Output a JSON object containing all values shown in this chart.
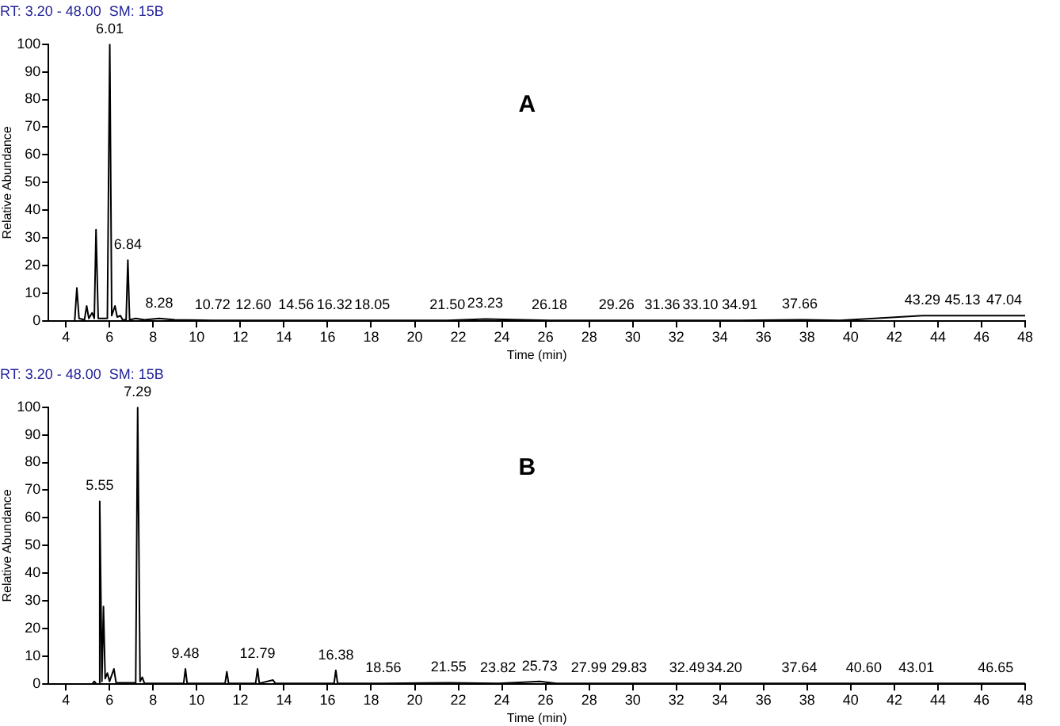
{
  "chart_data": [
    {
      "type": "line",
      "title": "A",
      "subtitle": "RT: 3.20 - 48.00  SM: 15B",
      "xlabel": "Time (min)",
      "ylabel": "Relative Abundance",
      "xlim": [
        3.2,
        48
      ],
      "xticks": [
        4,
        6,
        8,
        10,
        12,
        14,
        16,
        18,
        20,
        22,
        24,
        26,
        28,
        30,
        32,
        34,
        36,
        38,
        40,
        42,
        44,
        46,
        48
      ],
      "ylim": [
        0,
        100
      ],
      "yticks": [
        0,
        10,
        20,
        30,
        40,
        50,
        60,
        70,
        80,
        90,
        100
      ],
      "grid": false,
      "legend": false,
      "series": [
        {
          "color": "#000000",
          "x": [
            3.2,
            4.4,
            4.5,
            4.6,
            4.85,
            4.95,
            5.05,
            5.2,
            5.3,
            5.38,
            5.48,
            5.9,
            6.01,
            6.1,
            6.25,
            6.35,
            6.5,
            6.6,
            6.76,
            6.84,
            6.92,
            7.2,
            7.6,
            8.28,
            9,
            10.72,
            12.6,
            14.56,
            16.32,
            18.05,
            21.5,
            23.23,
            26.18,
            29.26,
            31.36,
            33.1,
            34.91,
            37.66,
            39.5,
            43.29,
            45.13,
            47.04,
            48
          ],
          "values": [
            0,
            0,
            12,
            1,
            0.5,
            5.5,
            1,
            3,
            1,
            33,
            1,
            1,
            100,
            2,
            5.5,
            1.5,
            2,
            0.5,
            0.5,
            22,
            0.5,
            1,
            0.5,
            1,
            0.5,
            0.3,
            0.3,
            0.3,
            0.3,
            0.3,
            0.3,
            0.8,
            0.3,
            0.3,
            0.3,
            0.3,
            0.3,
            0.5,
            0.3,
            2,
            2,
            2,
            2
          ]
        }
      ],
      "annotations": [
        {
          "text": "6.01",
          "x": 6.01,
          "y": 100
        },
        {
          "text": "6.84",
          "x": 6.84,
          "y": 22
        },
        {
          "text": "8.28",
          "x": 8.28,
          "y": 1
        },
        {
          "text": "10.72",
          "x": 10.72,
          "y": 0.3
        },
        {
          "text": "12.60",
          "x": 12.6,
          "y": 0.3
        },
        {
          "text": "14.56",
          "x": 14.56,
          "y": 0.3
        },
        {
          "text": "16.32",
          "x": 16.32,
          "y": 0.3
        },
        {
          "text": "18.05",
          "x": 18.05,
          "y": 0.3
        },
        {
          "text": "21.50",
          "x": 21.5,
          "y": 0.3
        },
        {
          "text": "23.23",
          "x": 23.23,
          "y": 0.8
        },
        {
          "text": "26.18",
          "x": 26.18,
          "y": 0.3
        },
        {
          "text": "29.26",
          "x": 29.26,
          "y": 0.3
        },
        {
          "text": "31.36",
          "x": 31.36,
          "y": 0.3
        },
        {
          "text": "33.10",
          "x": 33.1,
          "y": 0.3
        },
        {
          "text": "34.91",
          "x": 34.91,
          "y": 0.3
        },
        {
          "text": "37.66",
          "x": 37.66,
          "y": 0.5
        },
        {
          "text": "43.29",
          "x": 43.29,
          "y": 2
        },
        {
          "text": "45.13",
          "x": 45.13,
          "y": 2
        },
        {
          "text": "47.04",
          "x": 47.04,
          "y": 2
        }
      ]
    },
    {
      "type": "line",
      "title": "B",
      "subtitle": "RT: 3.20 - 48.00  SM: 15B",
      "xlabel": "Time (min)",
      "ylabel": "Relative Abundance",
      "xlim": [
        3.2,
        48
      ],
      "xticks": [
        4,
        6,
        8,
        10,
        12,
        14,
        16,
        18,
        20,
        22,
        24,
        26,
        28,
        30,
        32,
        34,
        36,
        38,
        40,
        42,
        44,
        46,
        48
      ],
      "ylim": [
        0,
        100
      ],
      "yticks": [
        0,
        10,
        20,
        30,
        40,
        50,
        60,
        70,
        80,
        90,
        100
      ],
      "grid": false,
      "legend": false,
      "series": [
        {
          "color": "#000000",
          "x": [
            3.2,
            5.2,
            5.3,
            5.4,
            5.5,
            5.55,
            5.65,
            5.72,
            5.8,
            5.9,
            6.0,
            6.2,
            6.3,
            7.2,
            7.29,
            7.4,
            7.5,
            7.6,
            9.4,
            9.48,
            9.56,
            11.3,
            11.38,
            11.46,
            12.7,
            12.79,
            12.87,
            13.5,
            13.6,
            16.3,
            16.38,
            16.46,
            18.56,
            21.55,
            23.82,
            25.2,
            25.73,
            26.5,
            27.99,
            29.83,
            32.49,
            34.2,
            37.64,
            40.6,
            43.01,
            46.65,
            48
          ],
          "values": [
            0,
            0,
            1,
            0,
            0,
            66,
            1,
            28,
            2,
            4,
            1,
            5.5,
            0.5,
            0.5,
            100,
            1,
            2.5,
            0.3,
            0.3,
            5.5,
            0.3,
            0.3,
            4.5,
            0.3,
            0.3,
            5.5,
            0.3,
            1.5,
            0.3,
            0.3,
            5,
            0.3,
            0.3,
            0.5,
            0.3,
            0.8,
            1,
            0.3,
            0.3,
            0.3,
            0.3,
            0.3,
            0.3,
            0.3,
            0.3,
            0.3,
            0.3
          ]
        }
      ],
      "annotations": [
        {
          "text": "5.55",
          "x": 5.55,
          "y": 66
        },
        {
          "text": "7.29",
          "x": 7.29,
          "y": 100
        },
        {
          "text": "9.48",
          "x": 9.48,
          "y": 5.5
        },
        {
          "text": "12.79",
          "x": 12.79,
          "y": 5.5
        },
        {
          "text": "16.38",
          "x": 16.38,
          "y": 5
        },
        {
          "text": "18.56",
          "x": 18.56,
          "y": 0.3
        },
        {
          "text": "21.55",
          "x": 21.55,
          "y": 0.5
        },
        {
          "text": "23.82",
          "x": 23.82,
          "y": 0.3
        },
        {
          "text": "25.73",
          "x": 25.73,
          "y": 1
        },
        {
          "text": "27.99",
          "x": 27.99,
          "y": 0.3
        },
        {
          "text": "29.83",
          "x": 29.83,
          "y": 0.3
        },
        {
          "text": "32.49",
          "x": 32.49,
          "y": 0.3
        },
        {
          "text": "34.20",
          "x": 34.2,
          "y": 0.3
        },
        {
          "text": "37.64",
          "x": 37.64,
          "y": 0.3
        },
        {
          "text": "40.60",
          "x": 40.6,
          "y": 0.3
        },
        {
          "text": "43.01",
          "x": 43.01,
          "y": 0.3
        },
        {
          "text": "46.65",
          "x": 46.65,
          "y": 0.3
        }
      ]
    }
  ]
}
